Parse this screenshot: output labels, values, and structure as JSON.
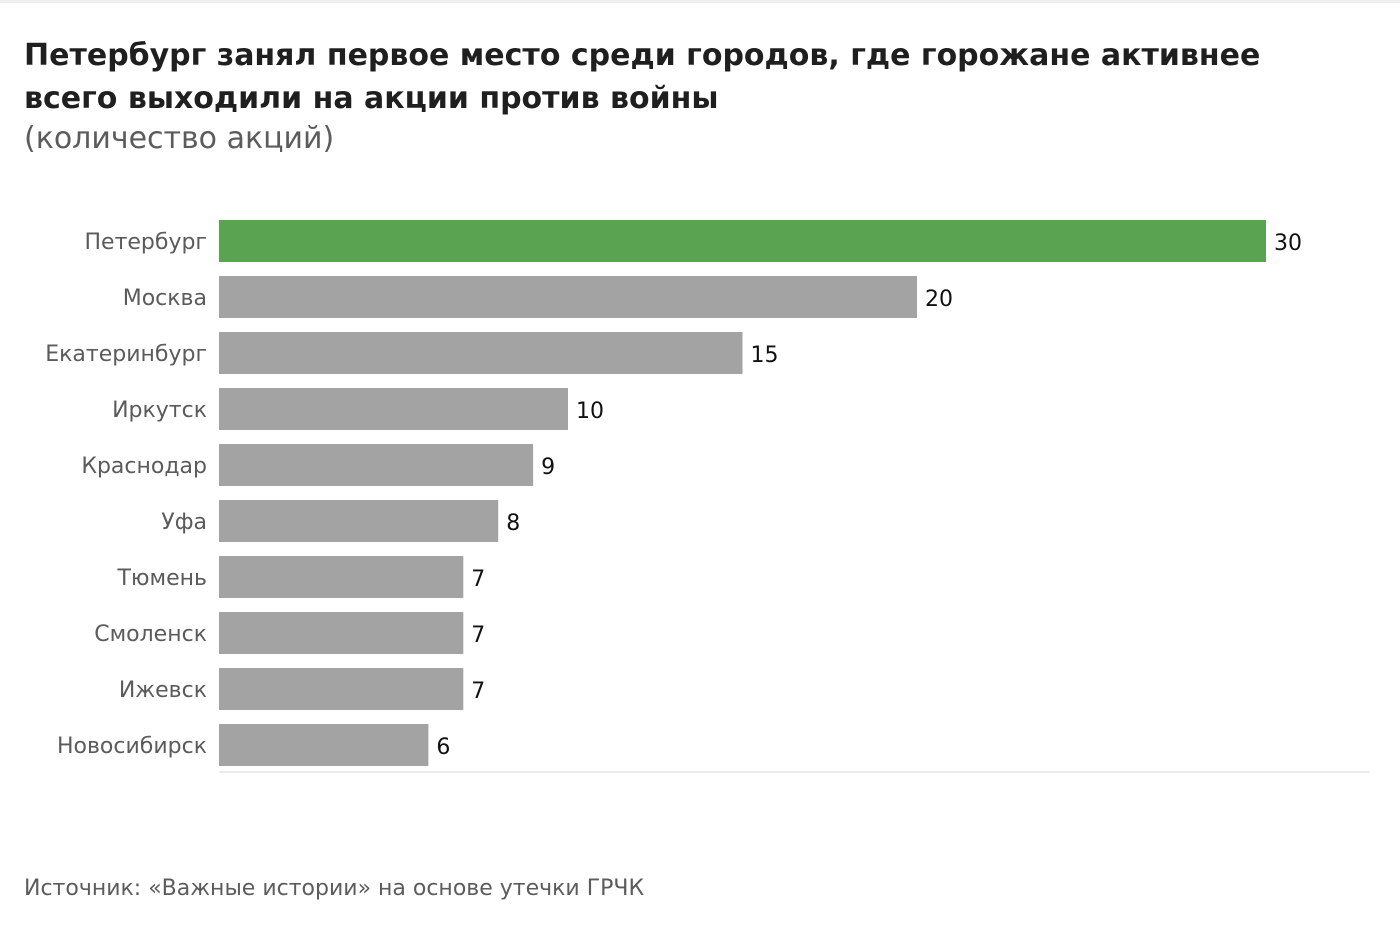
{
  "chart_data": {
    "type": "bar",
    "orientation": "horizontal",
    "title": "Петербург занял первое место среди городов, где горожане активнее всего выходили на акции против войны",
    "subtitle": "(количество акций)",
    "categories": [
      "Петербург",
      "Москва",
      "Екатеринбург",
      "Иркутск",
      "Краснодар",
      "Уфа",
      "Тюмень",
      "Смоленск",
      "Ижевск",
      "Новосибирск"
    ],
    "values": [
      30,
      20,
      15,
      10,
      9,
      8,
      7,
      7,
      7,
      6
    ],
    "xlim": [
      0,
      33
    ],
    "grid": false,
    "legend": "none",
    "colors": {
      "highlight": "#5aa351",
      "default": "#a3a3a3",
      "baseline": "#ececec"
    },
    "highlight_index": 0
  },
  "source": "Источник: «Важные истории» на основе утечки ГРЧК"
}
